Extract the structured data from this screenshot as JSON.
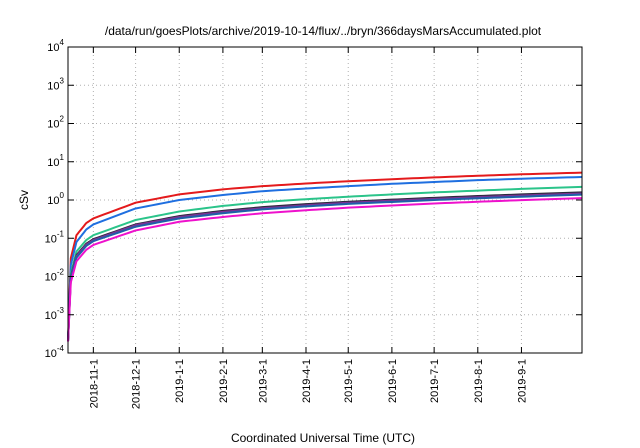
{
  "chart_data": {
    "type": "line",
    "title": "/data/run/goesPlots/archive/2019-10-14/flux/../bryn/366daysMarsAccumulated.plot",
    "xlabel": "Coordinated Universal Time (UTC)",
    "ylabel": "cSv",
    "xlim": [
      "2018-10-14",
      "2019-10-14"
    ],
    "ylim": [
      0.0001,
      10000
    ],
    "yscale": "log",
    "grid": true,
    "x_ticks": [
      "2018-11-1",
      "2018-12-1",
      "2019-1-1",
      "2019-2-1",
      "2019-3-1",
      "2019-4-1",
      "2019-5-1",
      "2019-6-1",
      "2019-7-1",
      "2019-8-1",
      "2019-9-1"
    ],
    "y_ticks": [
      {
        "base": "10",
        "exp": "-4",
        "value": 0.0001
      },
      {
        "base": "10",
        "exp": "-3",
        "value": 0.001
      },
      {
        "base": "10",
        "exp": "-2",
        "value": 0.01
      },
      {
        "base": "10",
        "exp": "-1",
        "value": 0.1
      },
      {
        "base": "10",
        "exp": "0",
        "value": 1
      },
      {
        "base": "10",
        "exp": "1",
        "value": 10
      },
      {
        "base": "10",
        "exp": "2",
        "value": 100
      },
      {
        "base": "10",
        "exp": "3",
        "value": 1000
      },
      {
        "base": "10",
        "exp": "4",
        "value": 10000
      }
    ],
    "series": [
      {
        "color": "#e41a1c",
        "points": [
          [
            "2018-10-14",
            0.0002
          ],
          [
            "2018-10-16",
            0.03
          ],
          [
            "2018-10-20",
            0.12
          ],
          [
            "2018-10-27",
            0.25
          ],
          [
            "2018-11-1",
            0.33
          ],
          [
            "2018-12-1",
            0.85
          ],
          [
            "2019-1-1",
            1.4
          ],
          [
            "2019-2-1",
            1.9
          ],
          [
            "2019-3-1",
            2.3
          ],
          [
            "2019-4-1",
            2.7
          ],
          [
            "2019-5-1",
            3.1
          ],
          [
            "2019-6-1",
            3.5
          ],
          [
            "2019-7-1",
            3.9
          ],
          [
            "2019-8-1",
            4.3
          ],
          [
            "2019-9-1",
            4.7
          ],
          [
            "2019-10-14",
            5.2
          ]
        ]
      },
      {
        "color": "#1f6fe0",
        "points": [
          [
            "2018-10-14",
            0.0002
          ],
          [
            "2018-10-16",
            0.02
          ],
          [
            "2018-10-20",
            0.08
          ],
          [
            "2018-10-27",
            0.17
          ],
          [
            "2018-11-1",
            0.23
          ],
          [
            "2018-12-1",
            0.6
          ],
          [
            "2019-1-1",
            1.0
          ],
          [
            "2019-2-1",
            1.35
          ],
          [
            "2019-3-1",
            1.7
          ],
          [
            "2019-4-1",
            2.0
          ],
          [
            "2019-5-1",
            2.3
          ],
          [
            "2019-6-1",
            2.65
          ],
          [
            "2019-7-1",
            2.95
          ],
          [
            "2019-8-1",
            3.3
          ],
          [
            "2019-9-1",
            3.6
          ],
          [
            "2019-10-14",
            4.0
          ]
        ]
      },
      {
        "color": "#2bc48a",
        "points": [
          [
            "2018-10-14",
            0.0002
          ],
          [
            "2018-10-16",
            0.012
          ],
          [
            "2018-10-20",
            0.045
          ],
          [
            "2018-10-27",
            0.09
          ],
          [
            "2018-11-1",
            0.12
          ],
          [
            "2018-12-1",
            0.3
          ],
          [
            "2019-1-1",
            0.5
          ],
          [
            "2019-2-1",
            0.7
          ],
          [
            "2019-3-1",
            0.88
          ],
          [
            "2019-4-1",
            1.05
          ],
          [
            "2019-5-1",
            1.22
          ],
          [
            "2019-6-1",
            1.4
          ],
          [
            "2019-7-1",
            1.58
          ],
          [
            "2019-8-1",
            1.76
          ],
          [
            "2019-9-1",
            1.95
          ],
          [
            "2019-10-14",
            2.2
          ]
        ]
      },
      {
        "color": "#2a2a3a",
        "points": [
          [
            "2018-10-14",
            0.0002
          ],
          [
            "2018-10-16",
            0.01
          ],
          [
            "2018-10-20",
            0.036
          ],
          [
            "2018-10-27",
            0.072
          ],
          [
            "2018-11-1",
            0.095
          ],
          [
            "2018-12-1",
            0.23
          ],
          [
            "2019-1-1",
            0.38
          ],
          [
            "2019-2-1",
            0.52
          ],
          [
            "2019-3-1",
            0.65
          ],
          [
            "2019-4-1",
            0.78
          ],
          [
            "2019-5-1",
            0.9
          ],
          [
            "2019-6-1",
            1.02
          ],
          [
            "2019-7-1",
            1.14
          ],
          [
            "2019-8-1",
            1.27
          ],
          [
            "2019-9-1",
            1.4
          ],
          [
            "2019-10-14",
            1.58
          ]
        ]
      },
      {
        "color": "#7b3294",
        "points": [
          [
            "2018-10-14",
            0.0002
          ],
          [
            "2018-10-16",
            0.0095
          ],
          [
            "2018-10-20",
            0.034
          ],
          [
            "2018-10-27",
            0.068
          ],
          [
            "2018-11-1",
            0.09
          ],
          [
            "2018-12-1",
            0.22
          ],
          [
            "2019-1-1",
            0.36
          ],
          [
            "2019-2-1",
            0.49
          ],
          [
            "2019-3-1",
            0.61
          ],
          [
            "2019-4-1",
            0.73
          ],
          [
            "2019-5-1",
            0.85
          ],
          [
            "2019-6-1",
            0.96
          ],
          [
            "2019-7-1",
            1.07
          ],
          [
            "2019-8-1",
            1.19
          ],
          [
            "2019-9-1",
            1.31
          ],
          [
            "2019-10-14",
            1.48
          ]
        ]
      },
      {
        "color": "#1f5fa8",
        "points": [
          [
            "2018-10-14",
            0.0002
          ],
          [
            "2018-10-16",
            0.0088
          ],
          [
            "2018-10-20",
            0.031
          ],
          [
            "2018-10-27",
            0.063
          ],
          [
            "2018-11-1",
            0.084
          ],
          [
            "2018-12-1",
            0.2
          ],
          [
            "2019-1-1",
            0.33
          ],
          [
            "2019-2-1",
            0.45
          ],
          [
            "2019-3-1",
            0.57
          ],
          [
            "2019-4-1",
            0.68
          ],
          [
            "2019-5-1",
            0.79
          ],
          [
            "2019-6-1",
            0.89
          ],
          [
            "2019-7-1",
            1.0
          ],
          [
            "2019-8-1",
            1.11
          ],
          [
            "2019-9-1",
            1.22
          ],
          [
            "2019-10-14",
            1.38
          ]
        ]
      },
      {
        "color": "#ee11cc",
        "points": [
          [
            "2018-10-14",
            0.0002
          ],
          [
            "2018-10-16",
            0.007
          ],
          [
            "2018-10-20",
            0.025
          ],
          [
            "2018-10-27",
            0.05
          ],
          [
            "2018-11-1",
            0.067
          ],
          [
            "2018-12-1",
            0.16
          ],
          [
            "2019-1-1",
            0.27
          ],
          [
            "2019-2-1",
            0.36
          ],
          [
            "2019-3-1",
            0.45
          ],
          [
            "2019-4-1",
            0.54
          ],
          [
            "2019-5-1",
            0.63
          ],
          [
            "2019-6-1",
            0.72
          ],
          [
            "2019-7-1",
            0.81
          ],
          [
            "2019-8-1",
            0.9
          ],
          [
            "2019-9-1",
            0.99
          ],
          [
            "2019-10-14",
            1.12
          ]
        ]
      }
    ]
  }
}
